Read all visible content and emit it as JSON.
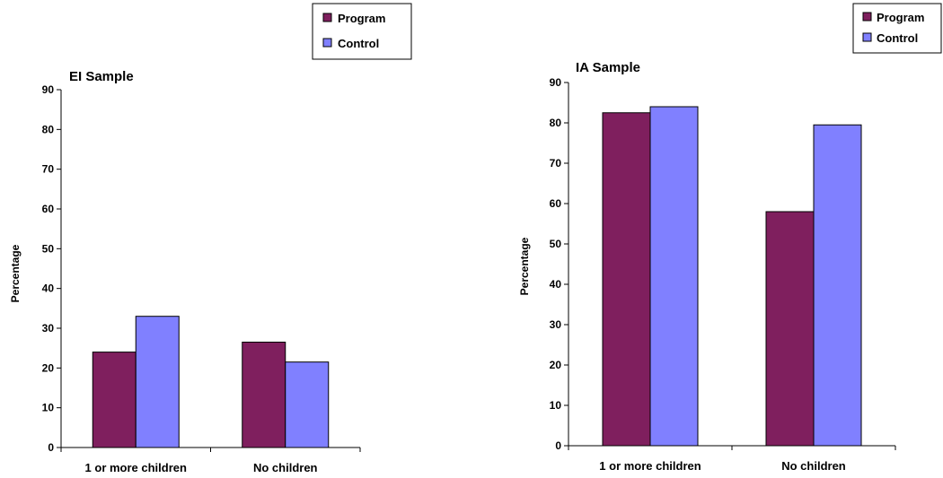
{
  "colors": {
    "program": "#7f1f5e",
    "control": "#8080ff"
  },
  "chart_data": [
    {
      "type": "bar",
      "title": "EI Sample",
      "ylabel": "Percentage",
      "xlabel": "",
      "ylim": [
        0,
        90
      ],
      "yticks": [
        0,
        10,
        20,
        30,
        40,
        50,
        60,
        70,
        80,
        90
      ],
      "categories": [
        "1 or more children",
        "No children"
      ],
      "series": [
        {
          "name": "Program",
          "values": [
            24,
            26.5
          ]
        },
        {
          "name": "Control",
          "values": [
            33,
            21.5
          ]
        }
      ],
      "legend": "top-right",
      "grid": false
    },
    {
      "type": "bar",
      "title": "IA Sample",
      "ylabel": "Percentage",
      "xlabel": "",
      "ylim": [
        0,
        90
      ],
      "yticks": [
        0,
        10,
        20,
        30,
        40,
        50,
        60,
        70,
        80,
        90
      ],
      "categories": [
        "1 or more children",
        "No children"
      ],
      "series": [
        {
          "name": "Program",
          "values": [
            82.5,
            58
          ]
        },
        {
          "name": "Control",
          "values": [
            84,
            79.5
          ]
        }
      ],
      "legend": "top-right",
      "grid": false
    }
  ]
}
